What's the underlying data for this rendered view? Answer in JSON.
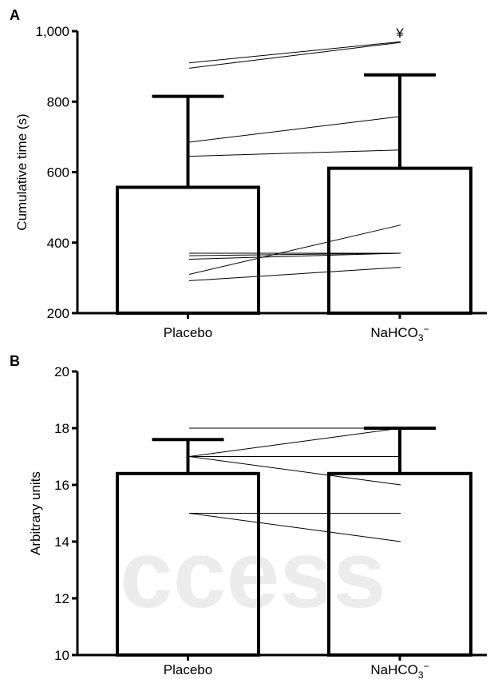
{
  "watermark": "ccess",
  "chart_data": [
    {
      "panel": "A",
      "type": "bar",
      "ylabel": "Cumulative time (s)",
      "ylim": [
        200,
        1000
      ],
      "yticks": [
        200,
        400,
        600,
        800,
        1000
      ],
      "ytick_labels": [
        "200",
        "400",
        "600",
        "800",
        "1,000"
      ],
      "categories": [
        "Placebo",
        "NaHCO3−"
      ],
      "category_labels": [
        {
          "main": "Placebo",
          "sub": "",
          "sup": ""
        },
        {
          "main": "NaHCO",
          "sub": "3",
          "sup": "−"
        }
      ],
      "values": [
        557,
        611
      ],
      "error_upper": [
        815,
        876
      ],
      "annotations": [
        {
          "text": "¥",
          "category": 1,
          "y": 995
        }
      ],
      "individual_lines": [
        [
          910,
          970
        ],
        [
          895,
          968
        ],
        [
          685,
          758
        ],
        [
          645,
          663
        ],
        [
          370,
          370
        ],
        [
          363,
          370
        ],
        [
          353,
          370
        ],
        [
          310,
          450
        ],
        [
          292,
          330
        ]
      ],
      "grid": false
    },
    {
      "panel": "B",
      "type": "bar",
      "ylabel": "Arbitrary units",
      "ylim": [
        10,
        20
      ],
      "yticks": [
        10,
        12,
        14,
        16,
        18,
        20
      ],
      "ytick_labels": [
        "10",
        "12",
        "14",
        "16",
        "18",
        "20"
      ],
      "categories": [
        "Placebo",
        "NaHCO3−"
      ],
      "category_labels": [
        {
          "main": "Placebo",
          "sub": "",
          "sup": ""
        },
        {
          "main": "NaHCO",
          "sub": "3",
          "sup": "−"
        }
      ],
      "values": [
        16.4,
        16.4
      ],
      "error_upper": [
        17.6,
        18.0
      ],
      "individual_lines": [
        [
          18,
          18
        ],
        [
          17,
          18
        ],
        [
          17,
          17
        ],
        [
          17,
          16
        ],
        [
          15,
          15
        ],
        [
          15,
          14
        ]
      ],
      "grid": false
    }
  ]
}
